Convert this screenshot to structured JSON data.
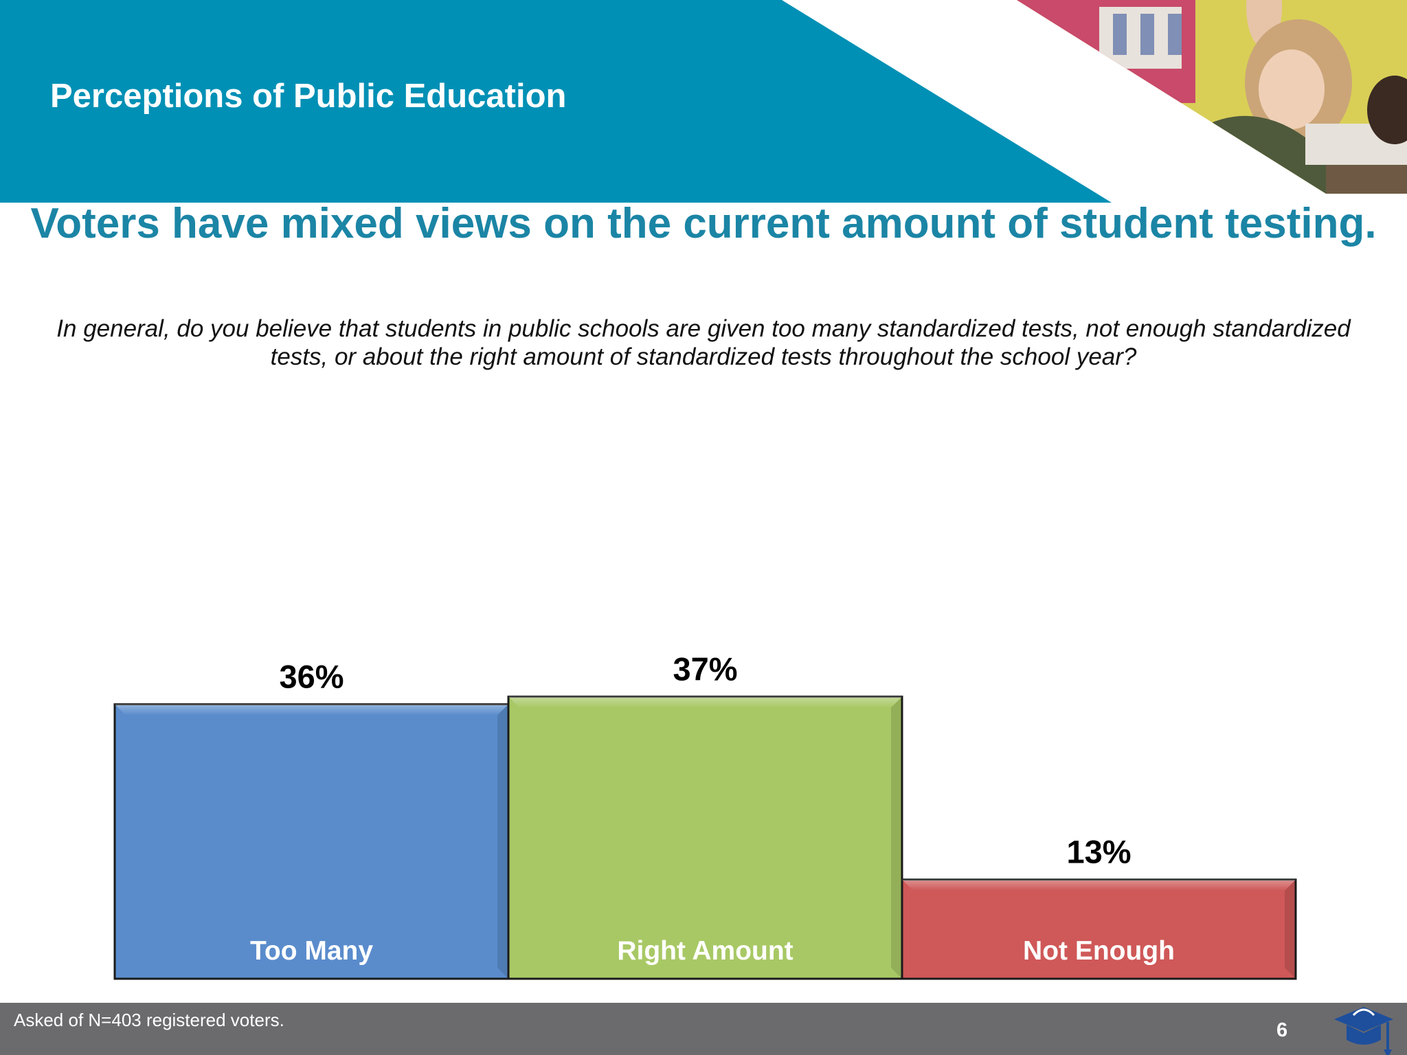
{
  "header": {
    "section_title": "Perceptions of Public Education",
    "band_color": "#0090b5",
    "photo_icon": "classroom-photo-icon"
  },
  "headline": "Voters have mixed views on the current amount of student testing.",
  "question": "In general, do you believe that students in public schools are given too many standardized tests, not enough standardized tests, or about the right amount of standardized tests throughout the school year?",
  "chart_data": {
    "type": "bar",
    "categories": [
      "Too Many",
      "Right Amount",
      "Not Enough"
    ],
    "values": [
      36,
      37,
      13
    ],
    "value_labels": [
      "36%",
      "37%",
      "13%"
    ],
    "colors": [
      "#5a8ccc",
      "#a8c865",
      "#cf5858"
    ],
    "ylim": [
      0,
      100
    ],
    "grid": false,
    "legend": "none"
  },
  "footer": {
    "note": "Asked of N=403 registered voters.",
    "page_number": "6",
    "logo_icon": "graduation-cap-logo-icon"
  }
}
